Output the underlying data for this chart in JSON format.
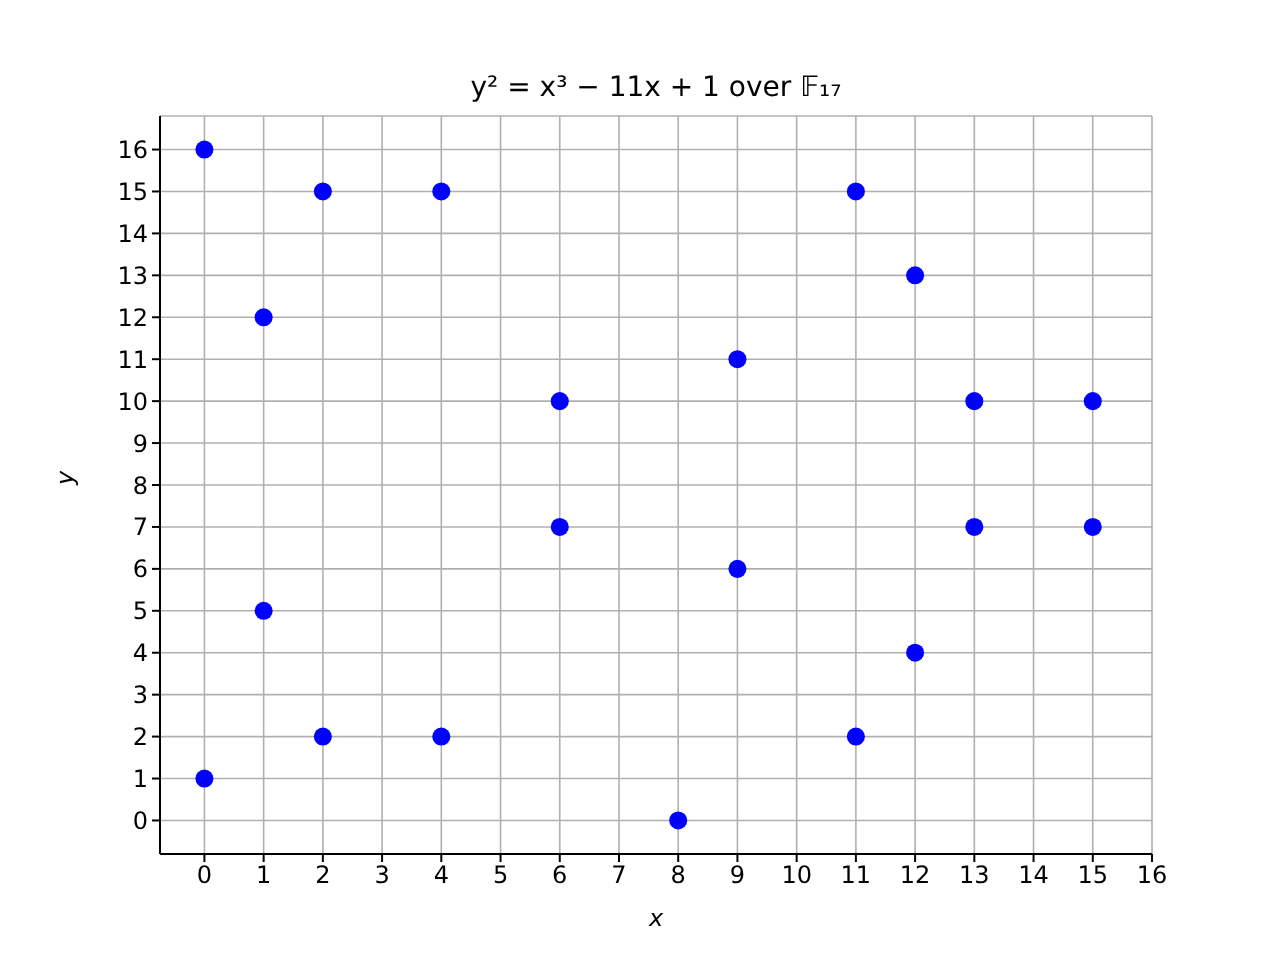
{
  "chart_data": {
    "type": "scatter",
    "title": "y² = x³ − 11x + 1 over 𝔽₁₇",
    "xlabel": "x",
    "ylabel": "y",
    "x": [
      0,
      0,
      1,
      1,
      2,
      2,
      4,
      4,
      6,
      6,
      8,
      9,
      9,
      11,
      11,
      12,
      12,
      13,
      13,
      15,
      15
    ],
    "series": [
      {
        "color": "#0000ff",
        "values": [
          1,
          16,
          5,
          12,
          2,
          15,
          2,
          15,
          7,
          10,
          0,
          6,
          11,
          2,
          15,
          4,
          13,
          7,
          10,
          7,
          10
        ]
      }
    ],
    "xlim": [
      -0.75,
      16
    ],
    "xticks": [
      0,
      1,
      2,
      3,
      4,
      5,
      6,
      7,
      8,
      9,
      10,
      11,
      12,
      13,
      14,
      15,
      16
    ],
    "ylim": [
      -0.8,
      16.8
    ],
    "yticks": [
      0,
      1,
      2,
      3,
      4,
      5,
      6,
      7,
      8,
      9,
      10,
      11,
      12,
      13,
      14,
      15,
      16
    ],
    "grid": true,
    "marker": "circle"
  }
}
